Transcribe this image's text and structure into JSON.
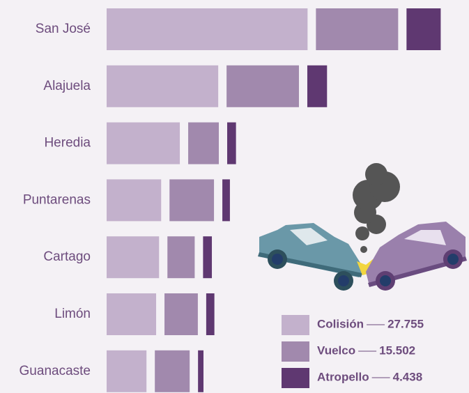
{
  "chart_data": {
    "type": "bar",
    "categories": [
      "San José",
      "Alajuela",
      "Heredia",
      "Puntarenas",
      "Cartago",
      "Limón",
      "Guanacaste"
    ],
    "series": [
      {
        "name": "Colisión",
        "color": "#c3b1cc",
        "values": [
          9580,
          5320,
          3490,
          2600,
          2500,
          2360,
          1900
        ]
      },
      {
        "name": "Vuelco",
        "color": "#a189ad",
        "values": [
          3920,
          3450,
          1460,
          2120,
          1300,
          1590,
          1660
        ]
      },
      {
        "name": "Atropello",
        "color": "#5f3871",
        "values": [
          1630,
          940,
          420,
          360,
          420,
          390,
          260
        ]
      }
    ],
    "totals": [
      27755,
      15502,
      4438
    ],
    "total_labels": [
      "27.755",
      "15.502",
      "4.438"
    ]
  }
}
